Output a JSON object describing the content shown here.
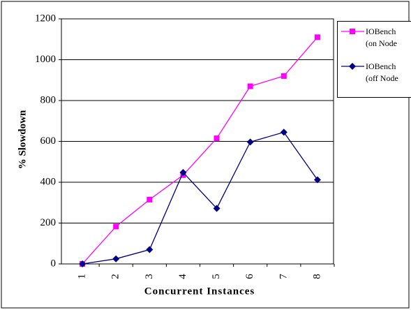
{
  "chart_data": {
    "type": "line",
    "y_label": "% Slowdown",
    "x_label": "Concurrent Instances",
    "categories": [
      "1",
      "2",
      "3",
      "4",
      "5",
      "6",
      "7",
      "8"
    ],
    "series": [
      {
        "name": "IOBench (on Node",
        "color": "#ff00ff",
        "marker": "square",
        "values": [
          0,
          183,
          315,
          435,
          615,
          870,
          920,
          1110
        ]
      },
      {
        "name": "IOBench (off Node",
        "color": "#000080",
        "marker": "diamond",
        "values": [
          0,
          25,
          70,
          448,
          272,
          597,
          645,
          412
        ]
      }
    ],
    "ylim": [
      0,
      1200
    ],
    "yticks": [
      0,
      200,
      400,
      600,
      800,
      1000,
      1200
    ],
    "grid": true
  }
}
